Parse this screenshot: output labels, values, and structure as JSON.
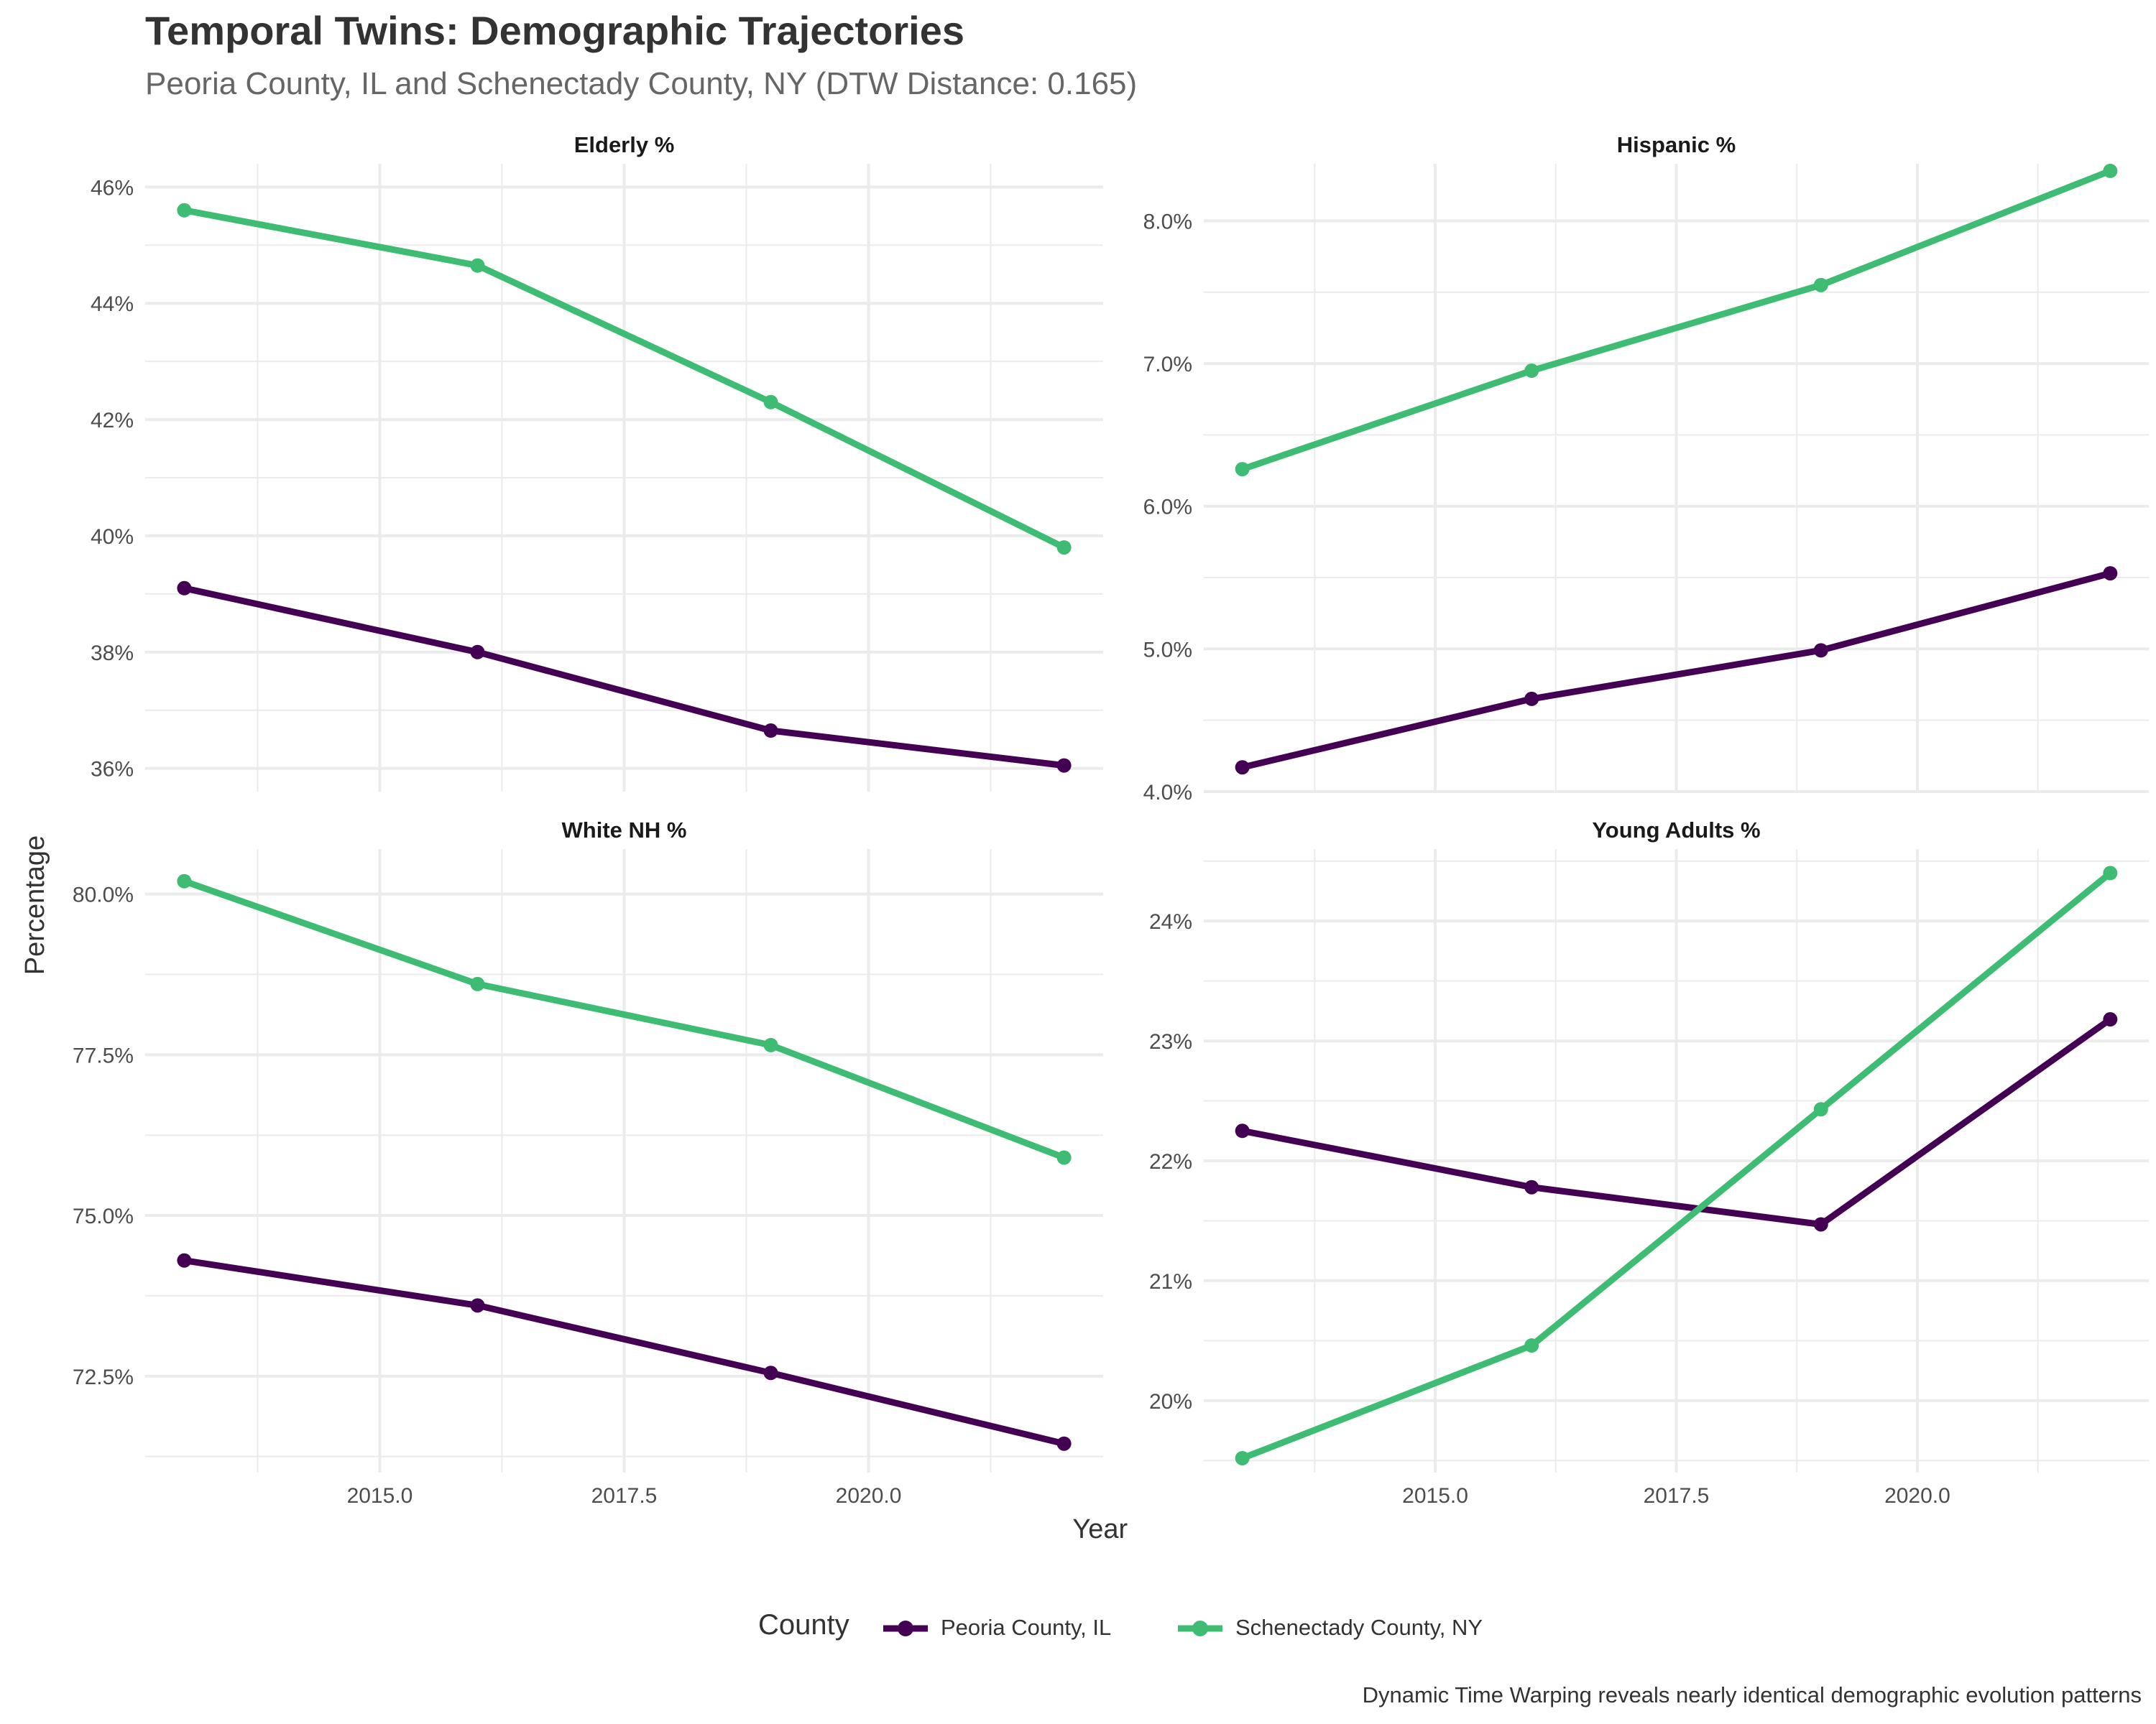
{
  "chart_data": {
    "type": "line",
    "title": "Temporal Twins: Demographic Trajectories",
    "subtitle": "Peoria County, IL and Schenectady County, NY (DTW Distance: 0.165)",
    "xlabel": "Year",
    "ylabel": "Percentage",
    "caption": "Dynamic Time Warping reveals nearly identical demographic evolution patterns",
    "legend": {
      "title": "County",
      "position": "bottom",
      "entries": [
        {
          "name": "Peoria County, IL",
          "color": "#440154"
        },
        {
          "name": "Schenectady County, NY",
          "color": "#3fbc73"
        }
      ]
    },
    "grid": true,
    "x": [
      2013,
      2016,
      2019,
      2022
    ],
    "xlim": [
      2012.6,
      2022.4
    ],
    "xticks": [
      2015.0,
      2017.5,
      2020.0
    ],
    "xtick_labels": [
      "2015.0",
      "2017.5",
      "2020.0"
    ],
    "panels": [
      {
        "title": "Elderly %",
        "ylim": [
          35.6,
          46.4
        ],
        "yticks": [
          36,
          38,
          40,
          42,
          44,
          46
        ],
        "ytick_labels": [
          "36%",
          "38%",
          "40%",
          "42%",
          "44%",
          "46%"
        ],
        "series": [
          {
            "name": "Peoria County, IL",
            "values": [
              39.1,
              38.0,
              36.65,
              36.05
            ]
          },
          {
            "name": "Schenectady County, NY",
            "values": [
              45.6,
              44.65,
              42.3,
              39.8
            ]
          }
        ]
      },
      {
        "title": "Hispanic %",
        "ylim": [
          4.0,
          8.4
        ],
        "yticks": [
          4.0,
          5.0,
          6.0,
          7.0,
          8.0
        ],
        "ytick_labels": [
          "4.0%",
          "5.0%",
          "6.0%",
          "7.0%",
          "8.0%"
        ],
        "series": [
          {
            "name": "Peoria County, IL",
            "values": [
              4.17,
              4.65,
              4.99,
              5.53
            ]
          },
          {
            "name": "Schenectady County, NY",
            "values": [
              6.26,
              6.95,
              7.55,
              8.35
            ]
          }
        ]
      },
      {
        "title": "White NH %",
        "ylim": [
          71.0,
          80.7
        ],
        "yticks": [
          72.5,
          75.0,
          77.5,
          80.0
        ],
        "ytick_labels": [
          "72.5%",
          "75.0%",
          "77.5%",
          "80.0%"
        ],
        "series": [
          {
            "name": "Peoria County, IL",
            "values": [
              74.3,
              73.6,
              72.55,
              71.45
            ]
          },
          {
            "name": "Schenectady County, NY",
            "values": [
              80.2,
              78.6,
              77.65,
              75.9
            ]
          }
        ]
      },
      {
        "title": "Young Adults %",
        "ylim": [
          19.4,
          24.6
        ],
        "yticks": [
          20,
          21,
          22,
          23,
          24
        ],
        "ytick_labels": [
          "20%",
          "21%",
          "22%",
          "23%",
          "24%"
        ],
        "series": [
          {
            "name": "Peoria County, IL",
            "values": [
              22.25,
              21.78,
              21.47,
              23.18
            ]
          },
          {
            "name": "Schenectady County, NY",
            "values": [
              19.52,
              20.46,
              22.43,
              24.4
            ]
          }
        ]
      }
    ]
  }
}
